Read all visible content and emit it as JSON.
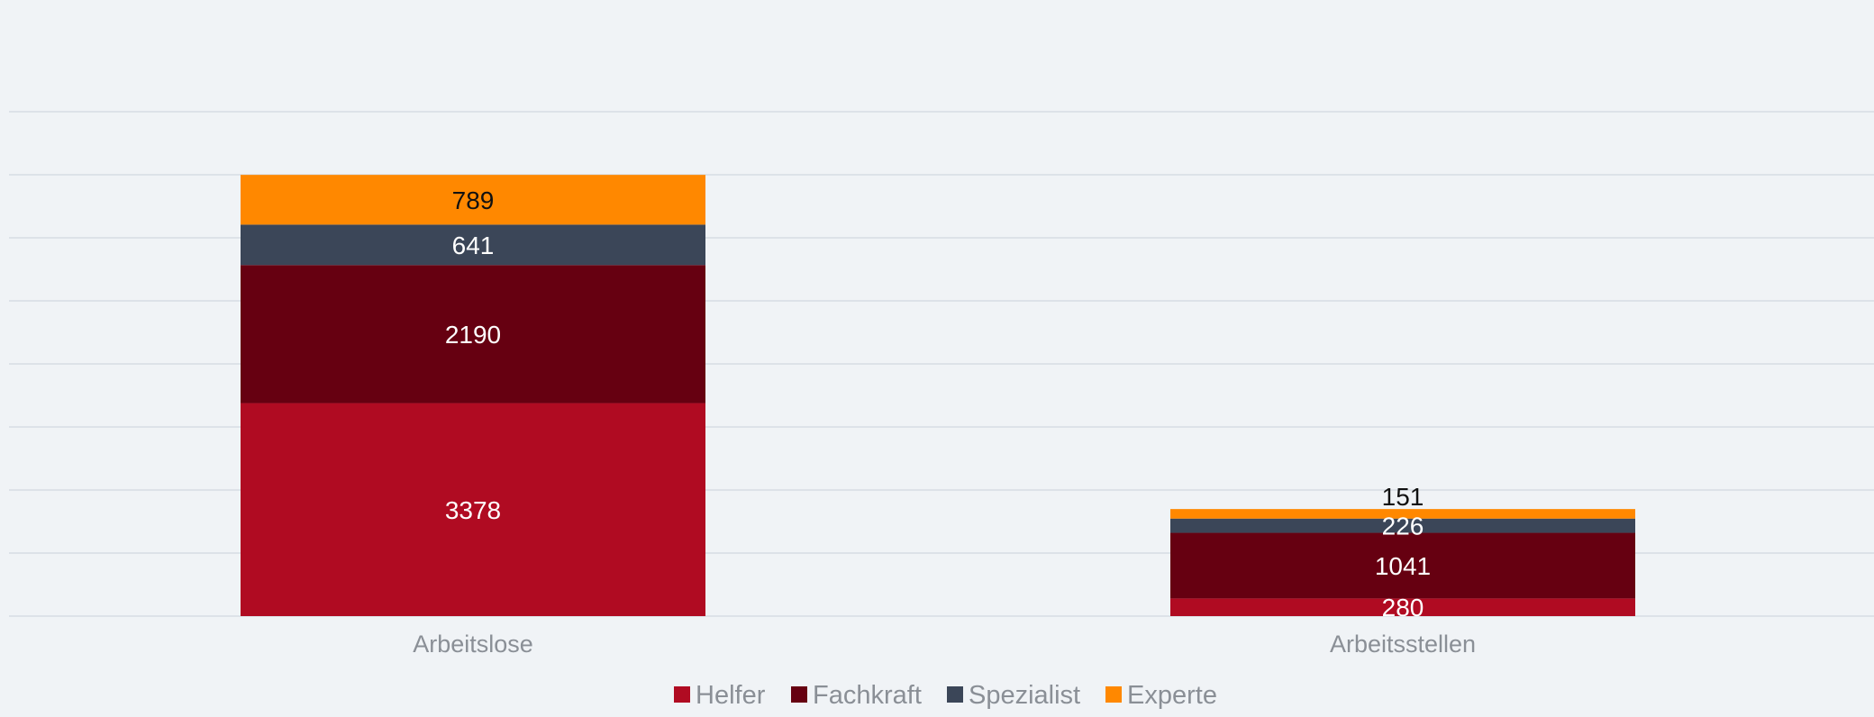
{
  "chart_data": {
    "type": "bar",
    "stacked": true,
    "title": "",
    "xlabel": "",
    "ylabel": "",
    "categories": [
      "Arbeitslose",
      "Arbeitsstellen"
    ],
    "series": [
      {
        "name": "Helfer",
        "color": "#b00b22",
        "label_color": "#ffffff",
        "values": [
          3378,
          280
        ]
      },
      {
        "name": "Fachkraft",
        "color": "#660011",
        "label_color": "#ffffff",
        "values": [
          2190,
          1041
        ]
      },
      {
        "name": "Spezialist",
        "color": "#3b4658",
        "label_color": "#ffffff",
        "values": [
          641,
          226
        ]
      },
      {
        "name": "Experte",
        "color": "#ff8800",
        "label_color": "#111111",
        "values": [
          789,
          151
        ]
      }
    ],
    "ylim": [
      0,
      8000
    ],
    "grid": true,
    "legend": "bottom-center",
    "gridline_color": "#dde2e8",
    "category_label_color": "#8a8f96"
  }
}
